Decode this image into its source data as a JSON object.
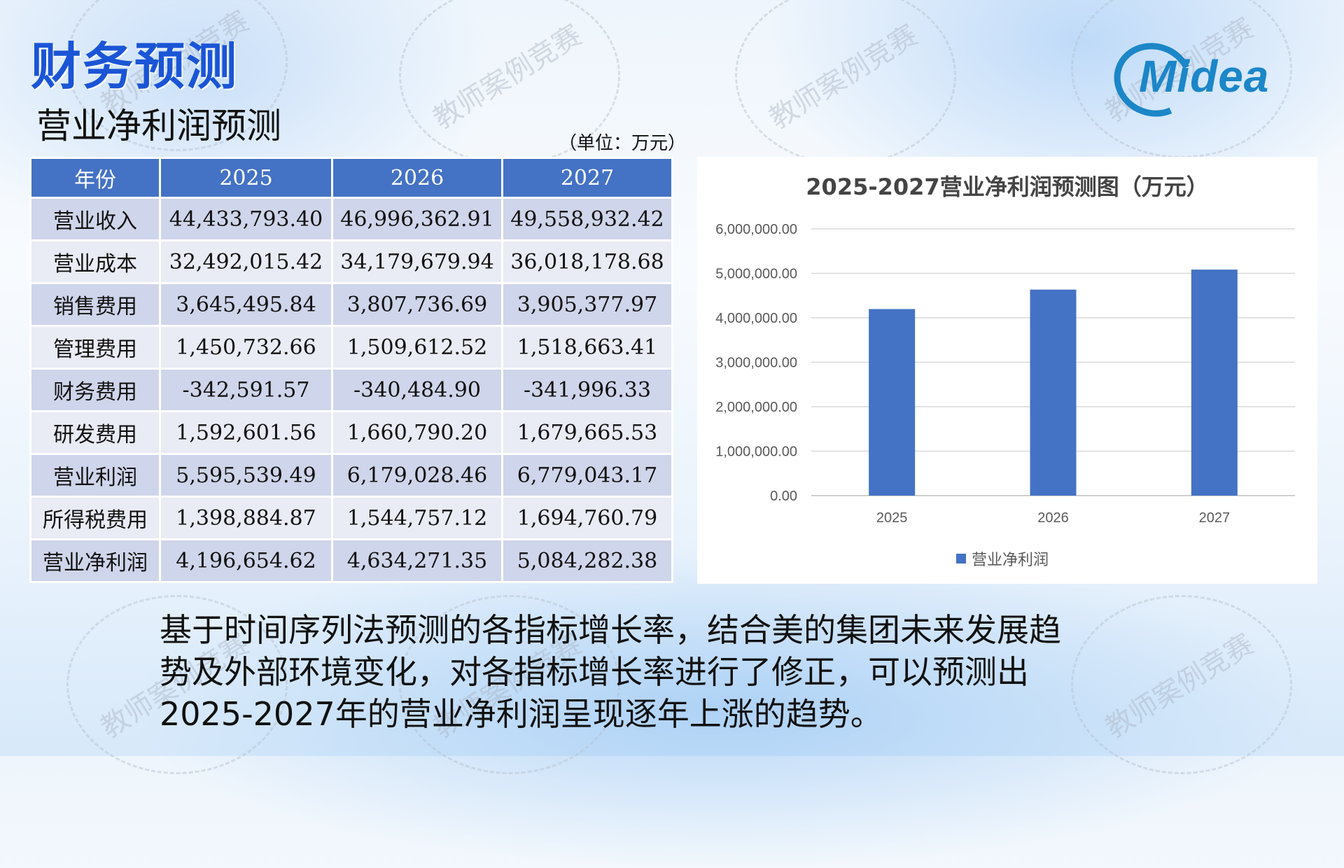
{
  "slide": {
    "title": "财务预测",
    "subtitle": "营业净利润预测",
    "unit": "（单位：万元）",
    "logo_text": "Midea",
    "watermark": "教师案例竞赛",
    "summary": "基于时间序列法预测的各指标增长率，结合美的集团未来发展趋势及外部环境变化，对各指标增长率进行了修正，可以预测出2025-2027年的营业净利润呈现逐年上涨的趋势。"
  },
  "table": {
    "headers": [
      "年份",
      "2025",
      "2026",
      "2027"
    ],
    "rows": [
      [
        "营业收入",
        "44,433,793.40",
        "46,996,362.91",
        "49,558,932.42"
      ],
      [
        "营业成本",
        "32,492,015.42",
        "34,179,679.94",
        "36,018,178.68"
      ],
      [
        "销售费用",
        "3,645,495.84",
        "3,807,736.69",
        "3,905,377.97"
      ],
      [
        "管理费用",
        "1,450,732.66",
        "1,509,612.52",
        "1,518,663.41"
      ],
      [
        "财务费用",
        "-342,591.57",
        "-340,484.90",
        "-341,996.33"
      ],
      [
        "研发费用",
        "1,592,601.56",
        "1,660,790.20",
        "1,679,665.53"
      ],
      [
        "营业利润",
        "5,595,539.49",
        "6,179,028.46",
        "6,779,043.17"
      ],
      [
        "所得税费用",
        "1,398,884.87",
        "1,544,757.12",
        "1,694,760.79"
      ],
      [
        "营业净利润",
        "4,196,654.62",
        "4,634,271.35",
        "5,084,282.38"
      ]
    ]
  },
  "chart_data": {
    "type": "bar",
    "title": "2025-2027营业净利润预测图（万元）",
    "categories": [
      "2025",
      "2026",
      "2027"
    ],
    "series": [
      {
        "name": "营业净利润",
        "values": [
          4196654.62,
          4634271.35,
          5084282.38
        ],
        "color": "#4472c4"
      }
    ],
    "yticks": [
      "0.00",
      "1,000,000.00",
      "2,000,000.00",
      "3,000,000.00",
      "4,000,000.00",
      "5,000,000.00",
      "6,000,000.00"
    ],
    "ylim": [
      0,
      6000000
    ],
    "grid": true,
    "legend": "bottom"
  }
}
